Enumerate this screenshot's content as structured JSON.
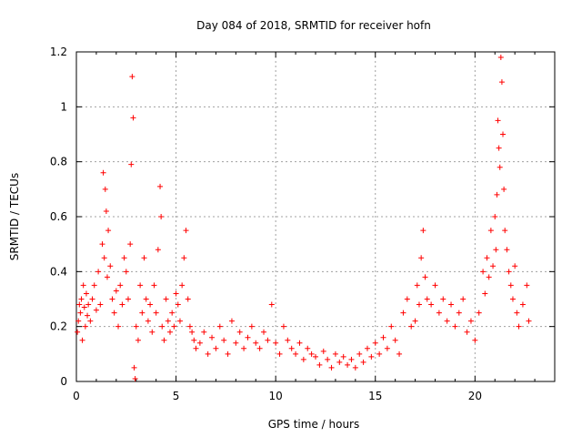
{
  "chart_data": {
    "type": "scatter",
    "title": "Day 084 of 2018, SRMTID for receiver hofn",
    "xlabel": "GPS time / hours",
    "ylabel": "SRMTID / TECUs",
    "xlim": [
      0,
      24
    ],
    "ylim": [
      0,
      1.2
    ],
    "x_ticks": [
      0,
      5,
      10,
      15,
      20
    ],
    "y_ticks": [
      0,
      0.2,
      0.4,
      0.6,
      0.8,
      1,
      1.2
    ],
    "x_tick_labels": [
      "0",
      "5",
      "10",
      "15",
      "20"
    ],
    "y_tick_labels": [
      "0",
      "0.2",
      "0.4",
      "0.6",
      "0.8",
      "1",
      "1.2"
    ],
    "grid": true,
    "marker": "plus",
    "color": "#ff0000",
    "series": [
      {
        "name": "SRMTID",
        "x": [
          0.05,
          0.1,
          0.15,
          0.2,
          0.25,
          0.3,
          0.35,
          0.4,
          0.45,
          0.5,
          0.55,
          0.6,
          0.7,
          0.8,
          0.9,
          1.0,
          1.1,
          1.2,
          1.3,
          1.35,
          1.4,
          1.45,
          1.5,
          1.55,
          1.6,
          1.7,
          1.8,
          1.9,
          2.0,
          2.1,
          2.2,
          2.3,
          2.4,
          2.5,
          2.6,
          2.7,
          2.75,
          2.8,
          2.85,
          2.9,
          2.95,
          3.0,
          3.1,
          3.2,
          3.3,
          3.4,
          3.5,
          3.6,
          3.7,
          3.8,
          3.9,
          4.0,
          4.1,
          4.2,
          4.25,
          4.3,
          4.4,
          4.5,
          4.6,
          4.7,
          4.8,
          4.9,
          5.0,
          5.1,
          5.2,
          5.3,
          5.4,
          5.5,
          5.6,
          5.7,
          5.8,
          5.9,
          6.0,
          6.2,
          6.4,
          6.6,
          6.8,
          7.0,
          7.2,
          7.4,
          7.6,
          7.8,
          8.0,
          8.2,
          8.4,
          8.6,
          8.8,
          9.0,
          9.2,
          9.4,
          9.6,
          9.8,
          10.0,
          10.2,
          10.4,
          10.6,
          10.8,
          11.0,
          11.2,
          11.4,
          11.6,
          11.8,
          12.0,
          12.2,
          12.4,
          12.6,
          12.8,
          13.0,
          13.2,
          13.4,
          13.6,
          13.8,
          14.0,
          14.2,
          14.4,
          14.6,
          14.8,
          15.0,
          15.2,
          15.4,
          15.6,
          15.8,
          16.0,
          16.2,
          16.4,
          16.6,
          16.8,
          17.0,
          17.1,
          17.2,
          17.3,
          17.4,
          17.5,
          17.6,
          17.8,
          18.0,
          18.2,
          18.4,
          18.6,
          18.8,
          19.0,
          19.2,
          19.4,
          19.6,
          19.8,
          20.0,
          20.2,
          20.4,
          20.5,
          20.6,
          20.7,
          20.8,
          20.9,
          21.0,
          21.05,
          21.1,
          21.15,
          21.2,
          21.25,
          21.3,
          21.35,
          21.4,
          21.45,
          21.5,
          21.6,
          21.7,
          21.8,
          21.9,
          22.0,
          22.1,
          22.2,
          22.4,
          22.6,
          22.7
        ],
        "y": [
          0.18,
          0.22,
          0.28,
          0.25,
          0.3,
          0.15,
          0.35,
          0.27,
          0.2,
          0.32,
          0.24,
          0.28,
          0.22,
          0.3,
          0.35,
          0.26,
          0.4,
          0.28,
          0.5,
          0.76,
          0.45,
          0.7,
          0.62,
          0.38,
          0.55,
          0.42,
          0.3,
          0.25,
          0.33,
          0.2,
          0.35,
          0.28,
          0.45,
          0.4,
          0.3,
          0.5,
          0.79,
          1.11,
          0.96,
          0.05,
          0.01,
          0.2,
          0.15,
          0.35,
          0.25,
          0.45,
          0.3,
          0.22,
          0.28,
          0.18,
          0.35,
          0.25,
          0.48,
          0.71,
          0.6,
          0.2,
          0.15,
          0.3,
          0.22,
          0.18,
          0.25,
          0.2,
          0.32,
          0.28,
          0.22,
          0.35,
          0.45,
          0.55,
          0.3,
          0.2,
          0.18,
          0.15,
          0.12,
          0.14,
          0.18,
          0.1,
          0.16,
          0.12,
          0.2,
          0.15,
          0.1,
          0.22,
          0.14,
          0.18,
          0.12,
          0.16,
          0.2,
          0.14,
          0.12,
          0.18,
          0.15,
          0.28,
          0.14,
          0.1,
          0.2,
          0.15,
          0.12,
          0.1,
          0.14,
          0.08,
          0.12,
          0.1,
          0.09,
          0.06,
          0.11,
          0.08,
          0.05,
          0.1,
          0.07,
          0.09,
          0.06,
          0.08,
          0.05,
          0.1,
          0.07,
          0.12,
          0.09,
          0.14,
          0.1,
          0.16,
          0.12,
          0.2,
          0.15,
          0.1,
          0.25,
          0.3,
          0.2,
          0.22,
          0.35,
          0.28,
          0.45,
          0.55,
          0.38,
          0.3,
          0.28,
          0.35,
          0.25,
          0.3,
          0.22,
          0.28,
          0.2,
          0.25,
          0.3,
          0.18,
          0.22,
          0.15,
          0.25,
          0.4,
          0.32,
          0.45,
          0.38,
          0.55,
          0.42,
          0.6,
          0.48,
          0.68,
          0.95,
          0.85,
          0.78,
          1.18,
          1.09,
          0.9,
          0.7,
          0.55,
          0.48,
          0.4,
          0.35,
          0.3,
          0.42,
          0.25,
          0.2,
          0.28,
          0.35,
          0.22
        ]
      }
    ]
  }
}
